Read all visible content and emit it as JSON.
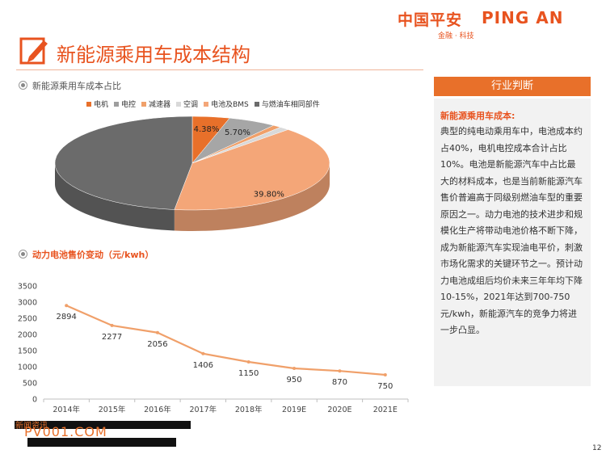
{
  "brand": {
    "cn": "中国平安",
    "en": "PING AN",
    "sub": "金融 · 科技"
  },
  "title": "新能源乘用车成本结构",
  "section1": {
    "label": "新能源乘用车成本占比"
  },
  "section2": {
    "label": "动力电池售价变动（元/kwh）"
  },
  "legend": [
    {
      "label": "电机",
      "color": "#e8702a"
    },
    {
      "label": "电控",
      "color": "#9e9e9e"
    },
    {
      "label": "减速器",
      "color": "#f0a06a"
    },
    {
      "label": "空调",
      "color": "#d9d9d9"
    },
    {
      "label": "电池及BMS",
      "color": "#f4a678"
    },
    {
      "label": "与燃油车相同部件",
      "color": "#6b6b6b"
    }
  ],
  "chart_data": [
    {
      "type": "pie",
      "slices": [
        {
          "name": "电机",
          "value": 4.38,
          "label": "4.38%",
          "color": "#e8702a"
        },
        {
          "name": "电控",
          "value": 5.7,
          "label": "5.70%",
          "color": "#a6a6a6"
        },
        {
          "name": "减速器",
          "value": 1.0,
          "label": "",
          "color": "#f0a06a"
        },
        {
          "name": "空调",
          "value": 1.2,
          "label": "",
          "color": "#d9d9d9"
        },
        {
          "name": "电池及BMS",
          "value": 39.8,
          "label": "39.80%",
          "color": "#f4a678"
        },
        {
          "name": "与燃油车相同部件",
          "value": 47.92,
          "label": "",
          "color": "#6b6b6b"
        }
      ]
    },
    {
      "type": "line",
      "categories": [
        "2014年",
        "2015年",
        "2016年",
        "2017年",
        "2018年",
        "2019E",
        "2020E",
        "2021E"
      ],
      "values": [
        2894,
        2277,
        2056,
        1406,
        1150,
        950,
        870,
        750
      ],
      "yticks": [
        "0",
        "500",
        "1000",
        "1500",
        "2000",
        "2500",
        "3000",
        "3500"
      ],
      "ylim": [
        0,
        3500
      ],
      "color": "#f0a06a"
    }
  ],
  "side": {
    "header": "行业判断",
    "subtitle": "新能源乘用车成本:",
    "text": "典型的纯电动乘用车中，电池成本约占40%，电机电控成本合计占比10%。电池是新能源汽车中占比最大的材料成本，也是当前新能源汽车售价普遍高于同级别燃油车型的重要原因之一。动力电池的技术进步和规模化生产将带动电池价格不断下降，成为新能源汽车实现油电平价，刺激市场化需求的关键环节之一。预计动力电池成组后均价未来三年年均下降10-15%，2021年达到700-750元/kwh，新能源汽车的竞争力将进一步凸显。"
  },
  "watermark": {
    "text": "PV001.COM",
    "cn": "新闻资讯"
  },
  "page_number": "12"
}
